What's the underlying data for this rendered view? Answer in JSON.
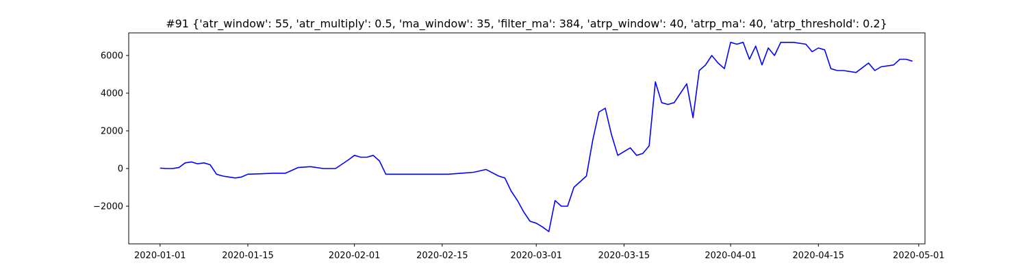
{
  "chart_data": {
    "type": "line",
    "title": "#91 {'atr_window': 55, 'atr_multiply': 0.5, 'ma_window': 35, 'filter_ma': 384, 'atrp_window': 40, 'atrp_ma': 40, 'atrp_threshold': 0.2}",
    "xlabel": "",
    "ylabel": "",
    "x_type": "date",
    "xlim": [
      "2019-12-27",
      "2020-05-02"
    ],
    "ylim": [
      -4000,
      7200
    ],
    "grid": false,
    "line_color": "#0000ff",
    "x_ticks": [
      "2020-01-01",
      "2020-01-15",
      "2020-02-01",
      "2020-02-15",
      "2020-03-01",
      "2020-03-15",
      "2020-04-01",
      "2020-04-15",
      "2020-05-01"
    ],
    "y_ticks": [
      {
        "value": -2000,
        "label": "−2000"
      },
      {
        "value": 0,
        "label": "0"
      },
      {
        "value": 2000,
        "label": "2000"
      },
      {
        "value": 4000,
        "label": "4000"
      },
      {
        "value": 6000,
        "label": "6000"
      }
    ],
    "series": [
      {
        "x": [
          "2020-01-01",
          "2020-01-02",
          "2020-01-03",
          "2020-01-04",
          "2020-01-05",
          "2020-01-06",
          "2020-01-07",
          "2020-01-08",
          "2020-01-09",
          "2020-01-10",
          "2020-01-11",
          "2020-01-12",
          "2020-01-13",
          "2020-01-14",
          "2020-01-15",
          "2020-01-17",
          "2020-01-19",
          "2020-01-21",
          "2020-01-23",
          "2020-01-25",
          "2020-01-27",
          "2020-01-29",
          "2020-01-31",
          "2020-02-01",
          "2020-02-02",
          "2020-02-03",
          "2020-02-04",
          "2020-02-05",
          "2020-02-06",
          "2020-02-08",
          "2020-02-10",
          "2020-02-12",
          "2020-02-14",
          "2020-02-16",
          "2020-02-18",
          "2020-02-20",
          "2020-02-22",
          "2020-02-24",
          "2020-02-25",
          "2020-02-26",
          "2020-02-27",
          "2020-02-28",
          "2020-02-29",
          "2020-03-01",
          "2020-03-02",
          "2020-03-03",
          "2020-03-04",
          "2020-03-05",
          "2020-03-06",
          "2020-03-07",
          "2020-03-09",
          "2020-03-10",
          "2020-03-11",
          "2020-03-12",
          "2020-03-13",
          "2020-03-14",
          "2020-03-15",
          "2020-03-16",
          "2020-03-17",
          "2020-03-18",
          "2020-03-19",
          "2020-03-20",
          "2020-03-21",
          "2020-03-22",
          "2020-03-23",
          "2020-03-24",
          "2020-03-25",
          "2020-03-26",
          "2020-03-27",
          "2020-03-28",
          "2020-03-29",
          "2020-03-30",
          "2020-03-31",
          "2020-04-01",
          "2020-04-02",
          "2020-04-03",
          "2020-04-04",
          "2020-04-05",
          "2020-04-06",
          "2020-04-07",
          "2020-04-08",
          "2020-04-09",
          "2020-04-11",
          "2020-04-13",
          "2020-04-14",
          "2020-04-15",
          "2020-04-16",
          "2020-04-17",
          "2020-04-18",
          "2020-04-19",
          "2020-04-21",
          "2020-04-23",
          "2020-04-24",
          "2020-04-25",
          "2020-04-27",
          "2020-04-28",
          "2020-04-29",
          "2020-04-30"
        ],
        "y": [
          20,
          0,
          0,
          50,
          300,
          350,
          250,
          300,
          200,
          -300,
          -400,
          -450,
          -500,
          -450,
          -300,
          -280,
          -250,
          -250,
          50,
          100,
          0,
          0,
          450,
          700,
          600,
          600,
          700,
          400,
          -300,
          -300,
          -300,
          -300,
          -300,
          -300,
          -250,
          -200,
          -50,
          -400,
          -500,
          -1200,
          -1700,
          -2300,
          -2800,
          -2900,
          -3100,
          -3350,
          -1700,
          -2000,
          -2000,
          -1000,
          -400,
          1500,
          3000,
          3200,
          1800,
          700,
          900,
          1100,
          700,
          800,
          1200,
          4600,
          3500,
          3400,
          3500,
          4000,
          4500,
          2700,
          5200,
          5500,
          6000,
          5600,
          5300,
          6700,
          6600,
          6700,
          5800,
          6500,
          5500,
          6400,
          6000,
          6700,
          6700,
          6600,
          6200,
          6400,
          6300,
          5300,
          5200,
          5200,
          5100,
          5600,
          5200,
          5400,
          5500,
          5800,
          5800,
          5700
        ]
      }
    ]
  }
}
